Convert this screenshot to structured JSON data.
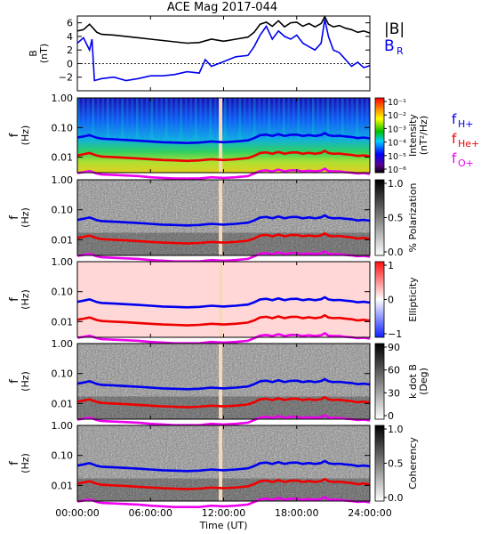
{
  "title": "ACE Mag 2017-044",
  "chart_data": [
    {
      "type": "line",
      "panel": "field",
      "ylabel": "B",
      "yunit": "(nT)",
      "ylim": [
        -4,
        7
      ],
      "yticks": [
        -2,
        0,
        2,
        4,
        6
      ],
      "xlim": [
        0,
        24
      ],
      "series": [
        {
          "name": "|B|",
          "color": "#000000",
          "x": [
            0,
            0.5,
            1,
            1.3,
            1.6,
            2,
            3,
            4,
            5,
            6,
            7,
            8,
            9,
            10,
            11,
            12,
            13,
            14,
            14.5,
            15,
            15.5,
            16,
            16.5,
            17,
            17.5,
            18,
            18.5,
            19,
            19.5,
            20,
            20.3,
            20.6,
            21,
            21.5,
            22,
            22.5,
            23,
            23.5,
            24
          ],
          "y": [
            4.8,
            5.0,
            5.8,
            5.2,
            4.6,
            4.3,
            4.2,
            4.0,
            3.8,
            3.6,
            3.4,
            3.2,
            3.0,
            3.1,
            3.6,
            3.3,
            3.6,
            3.9,
            4.6,
            5.8,
            6.1,
            5.5,
            6.3,
            5.4,
            6.0,
            6.1,
            5.5,
            5.9,
            5.4,
            5.9,
            6.9,
            5.8,
            5.4,
            5.6,
            5.2,
            5.0,
            4.6,
            4.8,
            4.5
          ]
        },
        {
          "name": "B",
          "subscript": "R",
          "color": "#0000ee",
          "x": [
            0,
            0.5,
            1,
            1.2,
            1.4,
            2,
            3,
            4,
            5,
            6,
            7,
            8,
            9,
            10,
            10.5,
            11,
            12,
            13,
            14,
            14.5,
            15,
            15.5,
            16,
            16.5,
            17,
            17.5,
            18,
            18.5,
            19,
            19.5,
            20,
            20.3,
            20.6,
            21,
            21.5,
            22,
            22.5,
            23,
            23.5,
            24
          ],
          "y": [
            3.0,
            3.8,
            2.0,
            3.6,
            -2.5,
            -2.2,
            -2.0,
            -2.5,
            -2.2,
            -1.8,
            -1.8,
            -1.6,
            -1.2,
            -1.4,
            0.6,
            -0.4,
            0.3,
            1.0,
            1.2,
            2.5,
            4.2,
            5.5,
            3.6,
            4.8,
            4.0,
            3.6,
            4.2,
            3.0,
            2.5,
            2.0,
            3.0,
            6.5,
            4.0,
            2.0,
            1.6,
            0.6,
            -0.4,
            0.2,
            -0.6,
            -0.3
          ]
        }
      ]
    },
    {
      "type": "heatmap",
      "panel": "intensity",
      "ylabel": "f",
      "yunit": "(Hz)",
      "yscale": "log",
      "ylim": [
        0.003,
        1.0
      ],
      "yticks": [
        0.01,
        0.1,
        1.0
      ],
      "yticklabels": [
        "0.01",
        "0.10",
        "1.00"
      ],
      "colorbar_label": "Intensity",
      "colorbar_unit": "(nT²/Hz)",
      "colorbar_scale": "log",
      "colorbar_range": [
        1e-06,
        0.1
      ],
      "colorbar_ticks": [
        "10⁻¹",
        "10⁻²",
        "10⁻³",
        "10⁻⁴",
        "10⁻⁵",
        "10⁻⁶"
      ],
      "colormap": "rainbow",
      "legend": [
        {
          "label": "f",
          "subscript": "H+",
          "color": "#0000ee"
        },
        {
          "label": "f",
          "subscript": "He+",
          "color": "#ee0000"
        },
        {
          "label": "f",
          "subscript": "O+",
          "color": "#ee00ee"
        }
      ]
    },
    {
      "type": "heatmap",
      "panel": "polarization",
      "ylabel": "f",
      "yunit": "(Hz)",
      "yscale": "log",
      "ylim": [
        0.003,
        1.0
      ],
      "yticks": [
        0.01,
        0.1,
        1.0
      ],
      "yticklabels": [
        "0.01",
        "0.10",
        "1.00"
      ],
      "colorbar_label": "% Polarization",
      "colorbar_range": [
        0.0,
        1.0
      ],
      "colorbar_ticks": [
        "1.0",
        "0.5",
        "0.0"
      ],
      "colormap": "gray"
    },
    {
      "type": "heatmap",
      "panel": "ellipticity",
      "ylabel": "f",
      "yunit": "(Hz)",
      "yscale": "log",
      "ylim": [
        0.003,
        1.0
      ],
      "yticks": [
        0.01,
        0.1,
        1.0
      ],
      "yticklabels": [
        "0.01",
        "0.10",
        "1.00"
      ],
      "colorbar_label": "Ellipticity",
      "colorbar_range": [
        -1,
        1
      ],
      "colorbar_ticks": [
        "1",
        "0",
        "−1"
      ],
      "colormap": "blue-white-red"
    },
    {
      "type": "heatmap",
      "panel": "kdotb",
      "ylabel": "f",
      "yunit": "(Hz)",
      "yscale": "log",
      "ylim": [
        0.003,
        1.0
      ],
      "yticks": [
        0.01,
        0.1,
        1.0
      ],
      "yticklabels": [
        "0.01",
        "0.10",
        "1.00"
      ],
      "colorbar_label": "k dot B",
      "colorbar_unit": "(Deg)",
      "colorbar_range": [
        0,
        90
      ],
      "colorbar_ticks": [
        "90",
        "60",
        "30",
        "0"
      ],
      "colormap": "gray"
    },
    {
      "type": "heatmap",
      "panel": "coherency",
      "ylabel": "f",
      "yunit": "(Hz)",
      "yscale": "log",
      "ylim": [
        0.003,
        1.0
      ],
      "yticks": [
        0.01,
        0.1,
        1.0
      ],
      "yticklabels": [
        "0.01",
        "0.10",
        "1.00"
      ],
      "colorbar_label": "Coherency",
      "colorbar_range": [
        0.0,
        1.0
      ],
      "colorbar_ticks": [
        "1.0",
        "0.5",
        "0.0"
      ],
      "colormap": "gray"
    }
  ],
  "gyrofrequency_lines": {
    "data_gap_time": 11.75,
    "x": [
      0,
      0.5,
      1,
      1.3,
      1.6,
      2,
      3,
      4,
      5,
      6,
      7,
      8,
      9,
      10,
      11,
      12,
      13,
      14,
      14.5,
      15,
      15.5,
      16,
      16.5,
      17,
      17.5,
      18,
      18.5,
      19,
      19.5,
      20,
      20.3,
      20.6,
      21,
      21.5,
      22,
      22.5,
      23,
      23.5,
      24
    ],
    "f_h": [
      0.046,
      0.05,
      0.055,
      0.05,
      0.045,
      0.042,
      0.04,
      0.038,
      0.036,
      0.034,
      0.032,
      0.031,
      0.03,
      0.031,
      0.034,
      0.032,
      0.034,
      0.037,
      0.044,
      0.055,
      0.058,
      0.052,
      0.06,
      0.052,
      0.057,
      0.058,
      0.052,
      0.056,
      0.052,
      0.056,
      0.065,
      0.055,
      0.052,
      0.053,
      0.05,
      0.048,
      0.044,
      0.046,
      0.043
    ],
    "f_he": [
      0.0115,
      0.0125,
      0.0138,
      0.0125,
      0.0113,
      0.0105,
      0.01,
      0.0095,
      0.009,
      0.0085,
      0.008,
      0.0078,
      0.0075,
      0.0078,
      0.0085,
      0.008,
      0.0085,
      0.0093,
      0.011,
      0.0138,
      0.0145,
      0.013,
      0.015,
      0.013,
      0.0143,
      0.0145,
      0.013,
      0.014,
      0.013,
      0.014,
      0.0163,
      0.0138,
      0.013,
      0.0133,
      0.0125,
      0.012,
      0.011,
      0.0115,
      0.0108
    ],
    "f_o": [
      0.0029,
      0.0031,
      0.0034,
      0.0031,
      0.0028,
      0.0026,
      0.0025,
      0.0024,
      0.0023,
      0.0021,
      0.002,
      0.0019,
      0.0019,
      0.0019,
      0.0021,
      0.002,
      0.0021,
      0.0023,
      0.0028,
      0.0034,
      0.0036,
      0.0033,
      0.0038,
      0.0033,
      0.0036,
      0.0036,
      0.0033,
      0.0035,
      0.0033,
      0.0035,
      0.0041,
      0.0034,
      0.0033,
      0.0033,
      0.0031,
      0.003,
      0.0028,
      0.0029,
      0.0027
    ]
  },
  "xaxis": {
    "xlim": [
      0,
      24
    ],
    "xlabel": "Time (UT)",
    "ticks": [
      0,
      6,
      12,
      18,
      24
    ],
    "ticklabels": [
      "00:00:00",
      "06:00:00",
      "12:00:00",
      "18:00:00",
      "24:00:00"
    ]
  },
  "colors": {
    "h_line": "#0000ee",
    "he_line": "#ee0000",
    "o_line": "#ee00ee",
    "gap": "#f5d9b8"
  }
}
